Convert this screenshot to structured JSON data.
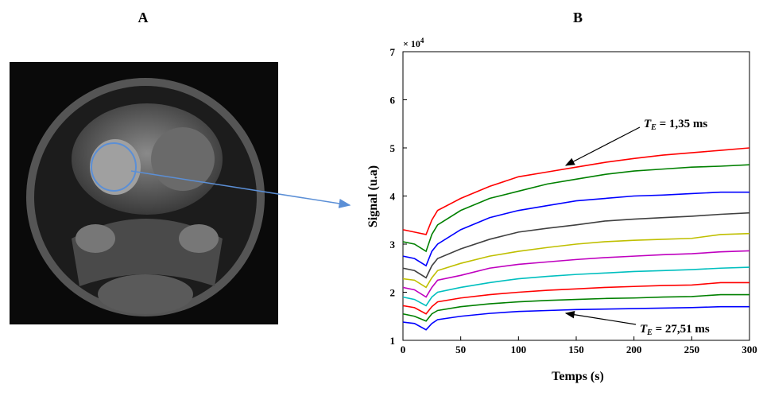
{
  "panels": {
    "a_label": "A",
    "b_label": "B"
  },
  "chart_data": {
    "type": "line",
    "x_label": "Temps (s)",
    "y_label": "Signal  (u.a)",
    "y_multiplier": {
      "base": "× 10",
      "exponent": "4"
    },
    "x": [
      0,
      10,
      20,
      25,
      30,
      50,
      75,
      100,
      125,
      150,
      175,
      200,
      225,
      250,
      275,
      300
    ],
    "series": [
      {
        "color": "#ff0000",
        "values": [
          3.3,
          3.25,
          3.2,
          3.5,
          3.7,
          3.95,
          4.2,
          4.4,
          4.5,
          4.6,
          4.7,
          4.78,
          4.85,
          4.9,
          4.95,
          5.0
        ]
      },
      {
        "color": "#008000",
        "values": [
          3.05,
          3.0,
          2.85,
          3.2,
          3.4,
          3.7,
          3.95,
          4.1,
          4.25,
          4.35,
          4.45,
          4.52,
          4.56,
          4.6,
          4.62,
          4.65
        ]
      },
      {
        "color": "#0000ff",
        "values": [
          2.75,
          2.7,
          2.55,
          2.85,
          3.0,
          3.3,
          3.55,
          3.7,
          3.8,
          3.9,
          3.95,
          4.0,
          4.02,
          4.05,
          4.08,
          4.08
        ]
      },
      {
        "color": "#404040",
        "values": [
          2.5,
          2.45,
          2.3,
          2.55,
          2.7,
          2.9,
          3.1,
          3.25,
          3.33,
          3.4,
          3.48,
          3.52,
          3.55,
          3.58,
          3.62,
          3.65
        ]
      },
      {
        "color": "#bfbf00",
        "values": [
          2.28,
          2.25,
          2.1,
          2.3,
          2.45,
          2.6,
          2.75,
          2.85,
          2.93,
          3.0,
          3.05,
          3.08,
          3.1,
          3.12,
          3.2,
          3.22
        ]
      },
      {
        "color": "#bf00bf",
        "values": [
          2.1,
          2.05,
          1.9,
          2.1,
          2.25,
          2.35,
          2.5,
          2.58,
          2.63,
          2.68,
          2.72,
          2.75,
          2.78,
          2.8,
          2.84,
          2.86
        ]
      },
      {
        "color": "#00bfbf",
        "values": [
          1.9,
          1.85,
          1.72,
          1.9,
          2.0,
          2.1,
          2.2,
          2.28,
          2.33,
          2.37,
          2.4,
          2.43,
          2.45,
          2.47,
          2.5,
          2.52
        ]
      },
      {
        "color": "#ff0000",
        "values": [
          1.72,
          1.68,
          1.55,
          1.7,
          1.8,
          1.88,
          1.95,
          2.0,
          2.04,
          2.07,
          2.1,
          2.12,
          2.14,
          2.15,
          2.2,
          2.2
        ]
      },
      {
        "color": "#008000",
        "values": [
          1.55,
          1.5,
          1.4,
          1.55,
          1.62,
          1.7,
          1.76,
          1.8,
          1.83,
          1.85,
          1.87,
          1.88,
          1.9,
          1.91,
          1.95,
          1.95
        ]
      },
      {
        "color": "#0000ff",
        "values": [
          1.38,
          1.35,
          1.22,
          1.35,
          1.43,
          1.5,
          1.56,
          1.6,
          1.62,
          1.64,
          1.65,
          1.66,
          1.67,
          1.68,
          1.7,
          1.7
        ]
      }
    ],
    "xlim": [
      0,
      300
    ],
    "xticks": [
      0,
      50,
      100,
      150,
      200,
      250,
      300
    ],
    "ylim": [
      1,
      7
    ],
    "yticks": [
      1,
      2,
      3,
      4,
      5,
      6,
      7
    ],
    "annotations": [
      {
        "symbol": "T",
        "subscript": "E",
        "text": " = 1,35 ms"
      },
      {
        "symbol": "T",
        "subscript": "E",
        "text": " = 27,51 ms"
      }
    ]
  }
}
